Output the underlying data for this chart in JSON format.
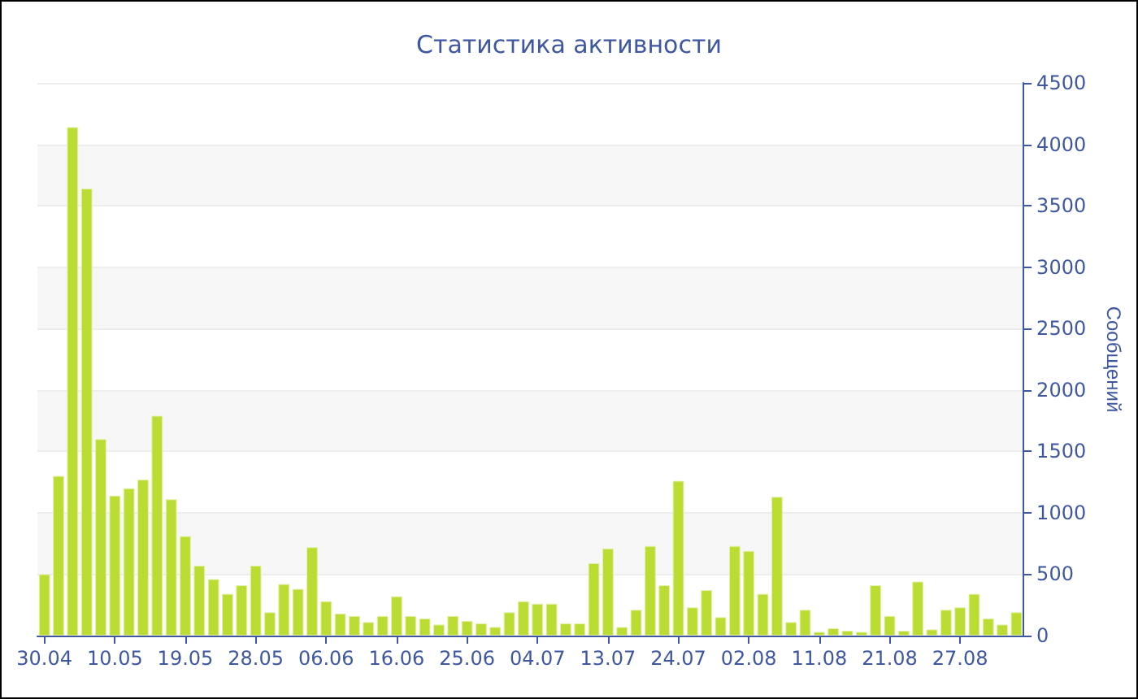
{
  "chart_data": {
    "type": "bar",
    "title": "Статистика активности",
    "ylabel": "Сообщений",
    "categories": [
      "30.04",
      null,
      null,
      null,
      null,
      "10.05",
      null,
      null,
      null,
      null,
      "19.05",
      null,
      null,
      null,
      null,
      "28.05",
      null,
      null,
      null,
      null,
      "06.06",
      null,
      null,
      null,
      null,
      "16.06",
      null,
      null,
      null,
      null,
      "25.06",
      null,
      null,
      null,
      null,
      "04.07",
      null,
      null,
      null,
      null,
      "13.07",
      null,
      null,
      null,
      null,
      "24.07",
      null,
      null,
      null,
      null,
      "02.08",
      null,
      null,
      null,
      null,
      "11.08",
      null,
      null,
      null,
      null,
      "21.08",
      null,
      null,
      null,
      null,
      "27.08",
      null,
      null,
      null,
      null
    ],
    "values": [
      500,
      1300,
      4140,
      3640,
      1600,
      1140,
      1200,
      1270,
      1790,
      1110,
      810,
      570,
      460,
      340,
      410,
      570,
      190,
      420,
      380,
      720,
      280,
      180,
      160,
      110,
      160,
      320,
      160,
      140,
      90,
      160,
      120,
      100,
      70,
      190,
      280,
      260,
      260,
      100,
      100,
      590,
      710,
      70,
      210,
      730,
      410,
      1260,
      230,
      370,
      150,
      730,
      690,
      340,
      1130,
      110,
      210,
      30,
      60,
      40,
      30,
      410,
      160,
      40,
      440,
      50,
      210,
      230,
      340,
      140,
      90,
      190
    ],
    "color": "#bbdd33",
    "ylim": [
      0,
      4500
    ],
    "yticks": [
      0,
      500,
      1000,
      1500,
      2000,
      2500,
      3000,
      3500,
      4000,
      4500
    ],
    "grid": "y"
  }
}
